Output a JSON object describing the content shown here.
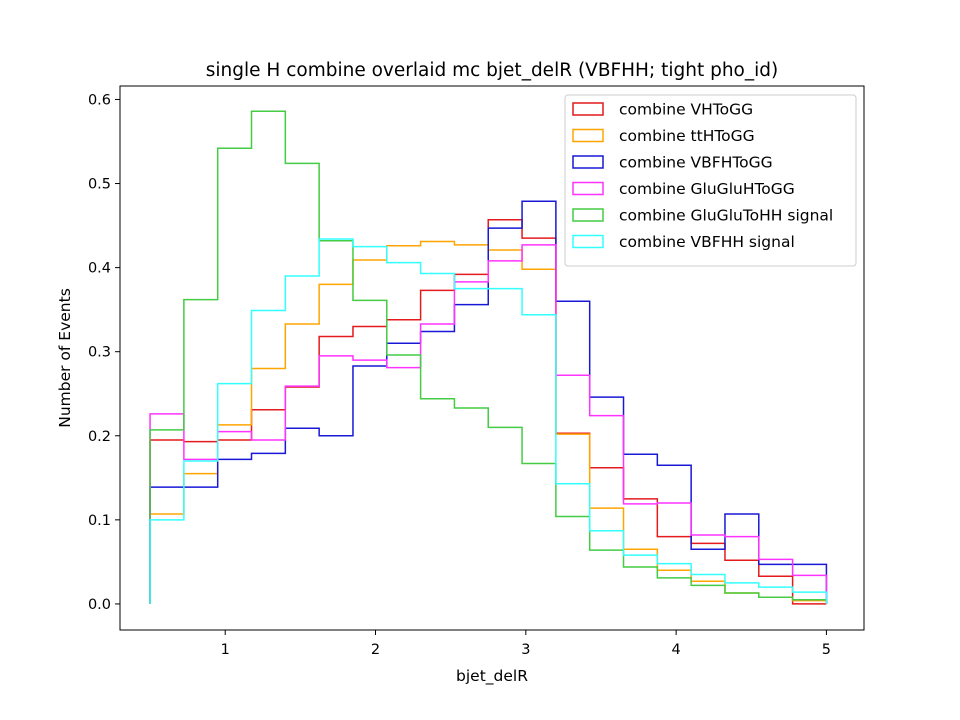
{
  "chart_data": {
    "type": "histogram-step",
    "title": "single H combine overlaid mc bjet_delR (VBFHH; tight pho_id)",
    "xlabel": "bjet_delR",
    "ylabel": "Number of Events",
    "xlim": [
      0.3,
      5.25
    ],
    "ylim": [
      -0.031,
      0.616
    ],
    "xticks": [
      1,
      2,
      3,
      4,
      5
    ],
    "yticks": [
      0.0,
      0.1,
      0.2,
      0.3,
      0.4,
      0.5,
      0.6
    ],
    "grid": false,
    "legend_position": "top-right",
    "bin_edges": [
      0.5,
      0.725,
      0.95,
      1.175,
      1.4,
      1.625,
      1.85,
      2.075,
      2.3,
      2.525,
      2.75,
      2.975,
      3.2,
      3.425,
      3.65,
      3.875,
      4.1,
      4.325,
      4.55,
      4.775,
      5.0
    ],
    "series": [
      {
        "name": "combine VHToGG",
        "color": "#e41a1c",
        "values": [
          0.195,
          0.193,
          0.195,
          0.231,
          0.258,
          0.318,
          0.33,
          0.338,
          0.373,
          0.392,
          0.457,
          0.435,
          0.203,
          0.162,
          0.125,
          0.08,
          0.072,
          0.052,
          0.033,
          0.0
        ]
      },
      {
        "name": "combine ttHToGG",
        "color": "#ffa500",
        "values": [
          0.107,
          0.155,
          0.213,
          0.28,
          0.333,
          0.38,
          0.409,
          0.426,
          0.431,
          0.427,
          0.421,
          0.398,
          0.202,
          0.114,
          0.065,
          0.04,
          0.027,
          0.013,
          0.008,
          0.004
        ]
      },
      {
        "name": "combine VBFHToGG",
        "color": "#1818d6",
        "values": [
          0.139,
          0.139,
          0.172,
          0.179,
          0.209,
          0.2,
          0.283,
          0.31,
          0.324,
          0.356,
          0.447,
          0.479,
          0.36,
          0.246,
          0.178,
          0.165,
          0.065,
          0.107,
          0.047,
          0.047
        ]
      },
      {
        "name": "combine GluGluHToGG",
        "color": "#ff33ff",
        "values": [
          0.226,
          0.172,
          0.205,
          0.195,
          0.259,
          0.295,
          0.29,
          0.281,
          0.333,
          0.383,
          0.408,
          0.427,
          0.272,
          0.224,
          0.119,
          0.12,
          0.082,
          0.08,
          0.053,
          0.034
        ]
      },
      {
        "name": "combine GluGluToHH signal",
        "color": "#44cc44",
        "values": [
          0.207,
          0.362,
          0.542,
          0.586,
          0.524,
          0.432,
          0.361,
          0.296,
          0.244,
          0.233,
          0.21,
          0.167,
          0.104,
          0.064,
          0.044,
          0.031,
          0.022,
          0.013,
          0.008,
          0.005
        ]
      },
      {
        "name": "combine VBFHH signal",
        "color": "#33ffff",
        "values": [
          0.1,
          0.17,
          0.262,
          0.349,
          0.39,
          0.434,
          0.425,
          0.406,
          0.393,
          0.375,
          0.375,
          0.344,
          0.143,
          0.087,
          0.058,
          0.048,
          0.035,
          0.025,
          0.02,
          0.014
        ]
      }
    ]
  }
}
